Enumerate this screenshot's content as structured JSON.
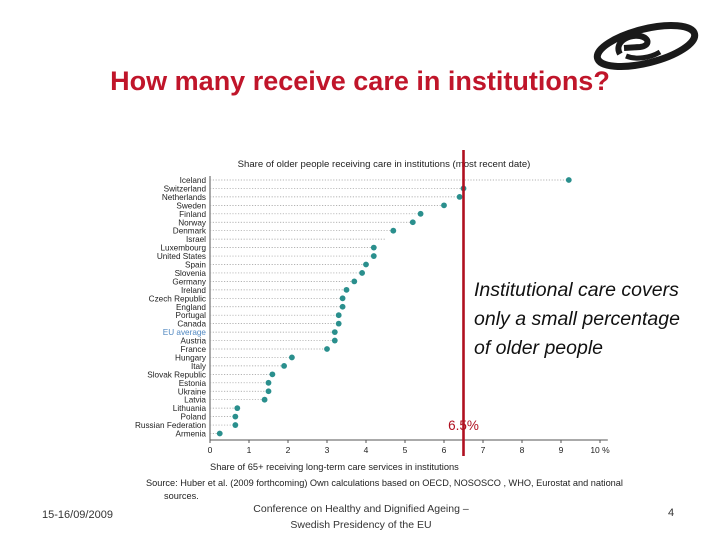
{
  "slide": {
    "title": "How many receive care in institutions?",
    "callout": "Institutional care covers only a small percentage of older people",
    "footer_date": "15-16/09/2009",
    "footer_conference": "Conference on Healthy and Dignified Ageing – Swedish Presidency of the EU",
    "page_number": "4"
  },
  "colors": {
    "title": "#c0152a",
    "dot": "#2a8f8d",
    "marker_line": "#b01020",
    "grid": "#9a9a9a",
    "eu_label": "#4f87c0"
  },
  "chart_data": {
    "type": "scatter",
    "orientation": "horizontal-dot-plot",
    "title": "Share of older people receiving care in institutions  (most recent date)",
    "xlabel": "Share of 65+ receiving long-term care services in institutions",
    "ylabel": "",
    "xlim": [
      0,
      10
    ],
    "x_ticks": [
      "0",
      "1",
      "2",
      "3",
      "4",
      "5",
      "6",
      "7",
      "8",
      "9",
      "10 %"
    ],
    "highlight_category": "EU average",
    "reference_line": {
      "value": 6.5,
      "label": "6.5%"
    },
    "source": "Source: Huber et al. (2009 forthcoming) Own calculations based on OECD, NOSOSCO , WHO, Eurostat and national sources.",
    "categories": [
      "Iceland",
      "Switzerland",
      "Netherlands",
      "Sweden",
      "Finland",
      "Norway",
      "Denmark",
      "Israel",
      "Luxembourg",
      "United States",
      "Spain",
      "Slovenia",
      "Germany",
      "Ireland",
      "Czech Republic",
      "England",
      "Portugal",
      "Canada",
      "EU average",
      "Austria",
      "France",
      "Hungary",
      "Italy",
      "Slovak Republic",
      "Estonia",
      "Ukraine",
      "Latvia",
      "Lithuania",
      "Poland",
      "Russian Federation",
      "Armenia"
    ],
    "values": [
      9.2,
      6.5,
      6.4,
      6.0,
      5.4,
      5.2,
      4.7,
      null,
      4.2,
      4.2,
      4.0,
      3.9,
      3.7,
      3.5,
      3.4,
      3.4,
      3.3,
      3.3,
      3.2,
      3.2,
      3.0,
      2.1,
      1.9,
      1.6,
      1.5,
      1.5,
      1.4,
      0.7,
      0.65,
      0.65,
      0.25
    ]
  }
}
